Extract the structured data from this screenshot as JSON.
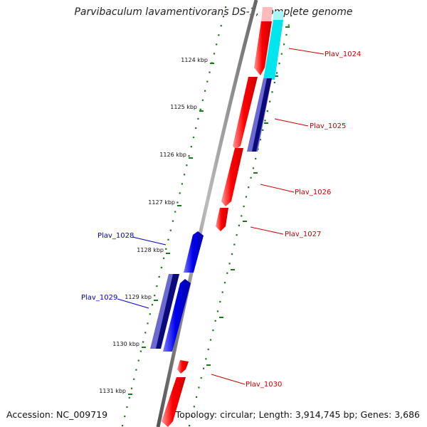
{
  "title": "Parvibaculum lavamentivorans DS-1, complete genome",
  "footer": {
    "accession": "Accession: NC_009719",
    "summary": "Topology: circular; Length: 3,914,745 bp; Genes: 3,686"
  },
  "ruler": {
    "tick_labels": [
      "1124 kbp",
      "1125 kbp",
      "1126 kbp",
      "1127 kbp",
      "1128 kbp",
      "1129 kbp",
      "1130 kbp",
      "1131 kbp"
    ]
  },
  "genes": [
    {
      "label": "Plav_1024",
      "strand": "forward"
    },
    {
      "label": "Plav_1025",
      "strand": "forward"
    },
    {
      "label": "Plav_1026",
      "strand": "forward"
    },
    {
      "label": "Plav_1027",
      "strand": "forward"
    },
    {
      "label": "Plav_1028",
      "strand": "reverse"
    },
    {
      "label": "Plav_1029",
      "strand": "reverse"
    },
    {
      "label": "Plav_1030",
      "strand": "forward"
    }
  ],
  "colors": {
    "forward_cds": "#ff0000",
    "reverse_cds": "#0000ee",
    "forward_label": "#cc0000",
    "reverse_label": "#0000cc",
    "cyan_feature": "#00e5ee",
    "ruler_dots": "#1a7a1a",
    "backbone": "#888888"
  }
}
